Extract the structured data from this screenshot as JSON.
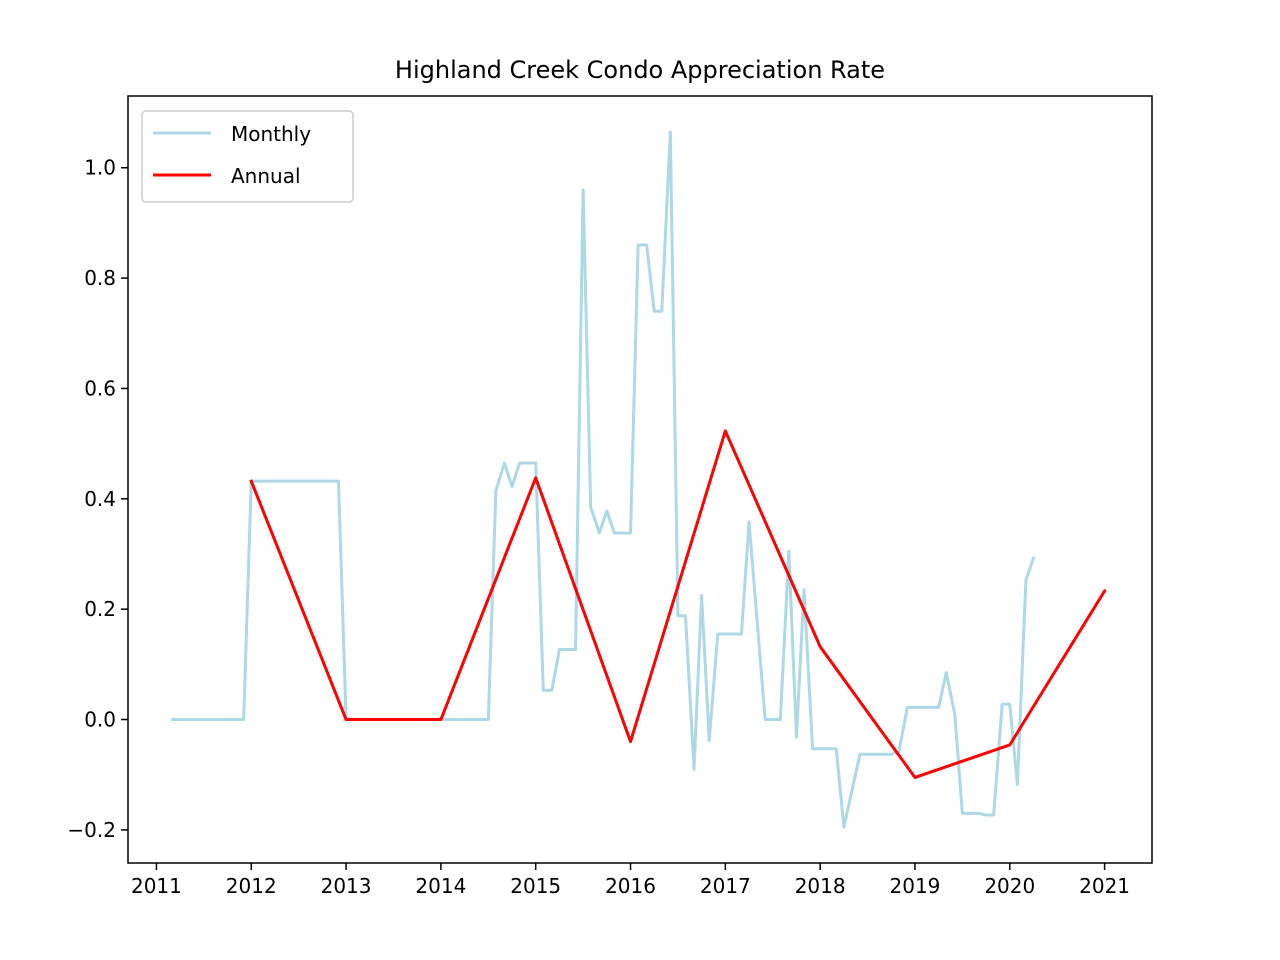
{
  "chart_data": {
    "type": "line",
    "title": "Highland Creek Condo Appreciation Rate",
    "xlabel": "",
    "ylabel": "",
    "xlim": [
      2010.7,
      2021.5
    ],
    "ylim": [
      -0.26,
      1.13
    ],
    "x_ticks": [
      2011,
      2012,
      2013,
      2014,
      2015,
      2016,
      2017,
      2018,
      2019,
      2020,
      2021
    ],
    "x_tick_labels": [
      "2011",
      "2012",
      "2013",
      "2014",
      "2015",
      "2016",
      "2017",
      "2018",
      "2019",
      "2020",
      "2021"
    ],
    "y_ticks": [
      -0.2,
      0.0,
      0.2,
      0.4,
      0.6,
      0.8,
      1.0
    ],
    "y_tick_labels": [
      "−0.2",
      "0.0",
      "0.2",
      "0.4",
      "0.6",
      "0.8",
      "1.0"
    ],
    "grid": false,
    "legend_position": "upper-left",
    "series": [
      {
        "name": "Monthly",
        "color": "#add8e6",
        "x": [
          2011.17,
          2011.92,
          2012.0,
          2012.92,
          2013.0,
          2014.5,
          2014.58,
          2014.67,
          2014.75,
          2014.83,
          2015.0,
          2015.08,
          2015.17,
          2015.25,
          2015.42,
          2015.5,
          2015.58,
          2015.67,
          2015.75,
          2015.83,
          2016.0,
          2016.08,
          2016.17,
          2016.25,
          2016.33,
          2016.42,
          2016.5,
          2016.58,
          2016.67,
          2016.75,
          2016.83,
          2016.92,
          2017.17,
          2017.25,
          2017.42,
          2017.58,
          2017.67,
          2017.75,
          2017.83,
          2017.92,
          2018.17,
          2018.25,
          2018.42,
          2018.75,
          2018.83,
          2018.92,
          2019.25,
          2019.33,
          2019.42,
          2019.5,
          2019.67,
          2019.75,
          2019.83,
          2019.92,
          2020.0,
          2020.08,
          2020.17,
          2020.25
        ],
        "y": [
          0.0,
          0.0,
          0.432,
          0.432,
          0.0,
          0.0,
          0.415,
          0.465,
          0.422,
          0.465,
          0.465,
          0.053,
          0.053,
          0.127,
          0.127,
          0.96,
          0.385,
          0.338,
          0.378,
          0.338,
          0.338,
          0.86,
          0.86,
          0.74,
          0.74,
          1.065,
          0.188,
          0.188,
          -0.09,
          0.225,
          -0.038,
          0.155,
          0.155,
          0.358,
          0.0,
          0.0,
          0.305,
          -0.032,
          0.235,
          -0.053,
          -0.053,
          -0.195,
          -0.063,
          -0.063,
          -0.058,
          0.022,
          0.022,
          0.085,
          0.01,
          -0.17,
          -0.17,
          -0.173,
          -0.173,
          0.028,
          0.028,
          -0.118,
          0.252,
          0.293
        ]
      },
      {
        "name": "Annual",
        "color": "#ff0000",
        "x": [
          2012,
          2013,
          2014,
          2015,
          2016,
          2017,
          2018,
          2019,
          2020,
          2021
        ],
        "y": [
          0.432,
          0.0,
          0.0,
          0.438,
          -0.04,
          0.523,
          0.132,
          -0.105,
          -0.046,
          0.233
        ]
      }
    ]
  }
}
